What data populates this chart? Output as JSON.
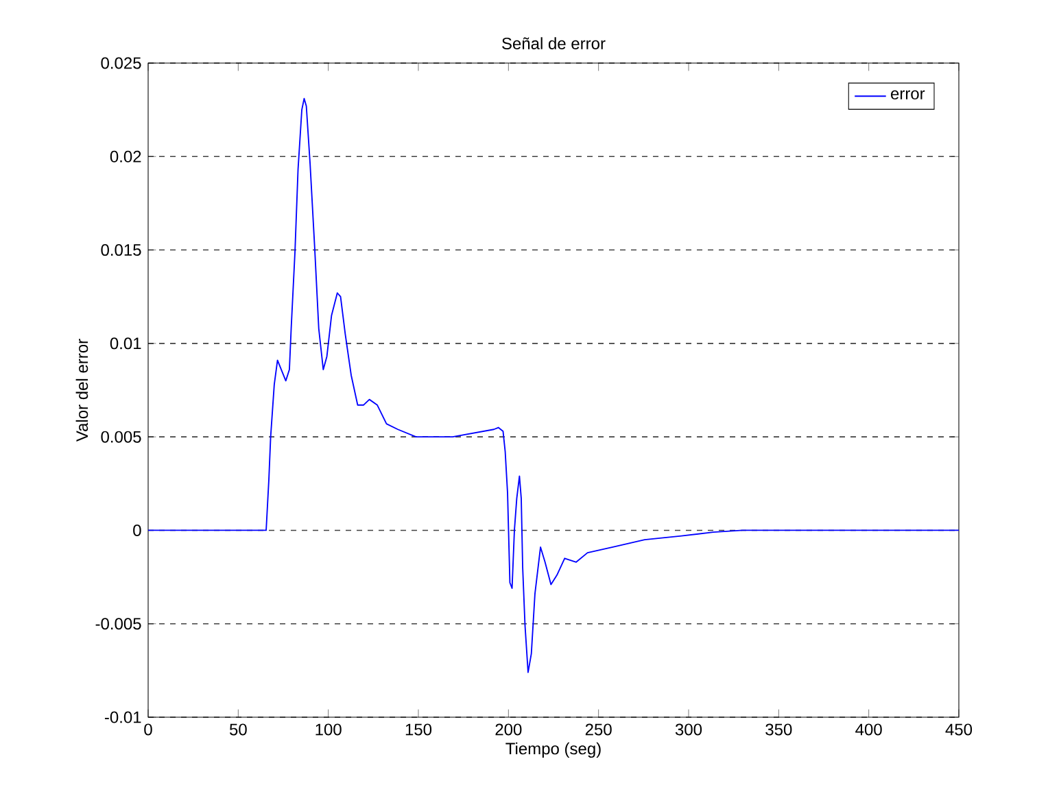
{
  "chart_data": {
    "type": "line",
    "title": "Señal de error",
    "xlabel": "Tiempo (seg)",
    "ylabel": "Valor del error",
    "xlim": [
      0,
      450
    ],
    "ylim": [
      -0.01,
      0.025
    ],
    "xticks": [
      0,
      50,
      100,
      150,
      200,
      250,
      300,
      350,
      400,
      450
    ],
    "yticks": [
      -0.01,
      -0.005,
      0,
      0.005,
      0.01,
      0.015,
      0.02,
      0.025
    ],
    "grid": "y",
    "legend": "top right",
    "line_style": "solid",
    "series": [
      {
        "name": "error",
        "color": "#0000ff",
        "x": [
          0,
          65.5,
          67,
          68,
          70,
          71.8,
          76.4,
          78.4,
          79.4,
          81.5,
          83.2,
          85.3,
          86.6,
          87.8,
          89.9,
          92.4,
          94.7,
          97.2,
          99.2,
          101.8,
          105,
          106.8,
          109.4,
          112.7,
          116.3,
          119.5,
          122.8,
          127.2,
          132.3,
          138.6,
          148.7,
          169,
          191.9,
          194.4,
          197,
          198.2,
          199.5,
          200.8,
          202,
          203.3,
          204.6,
          206.1,
          207.1,
          207.9,
          209.2,
          210.9,
          212.7,
          214.7,
          217.8,
          220.3,
          223.6,
          226.9,
          231.2,
          237.6,
          243.9,
          257.9,
          275.6,
          296,
          313.7,
          330,
          350,
          450
        ],
        "values": [
          0,
          0,
          0.0027,
          0.005,
          0.0078,
          0.0091,
          0.008,
          0.0086,
          0.0108,
          0.0149,
          0.0193,
          0.0225,
          0.0231,
          0.0227,
          0.0196,
          0.0152,
          0.0108,
          0.0086,
          0.0093,
          0.0115,
          0.0127,
          0.0125,
          0.0105,
          0.0083,
          0.0067,
          0.0067,
          0.007,
          0.0067,
          0.0057,
          0.0054,
          0.005,
          0.005,
          0.0054,
          0.0055,
          0.0053,
          0.0042,
          0.002,
          -0.0028,
          -0.0031,
          0,
          0.0017,
          0.0029,
          0.0017,
          -0.002,
          -0.0051,
          -0.0076,
          -0.0066,
          -0.0034,
          -0.0009,
          -0.0017,
          -0.0029,
          -0.0024,
          -0.0015,
          -0.0017,
          -0.0012,
          -0.0009,
          -0.0005,
          -0.0003,
          -0.0001,
          0,
          0,
          0
        ]
      }
    ]
  }
}
